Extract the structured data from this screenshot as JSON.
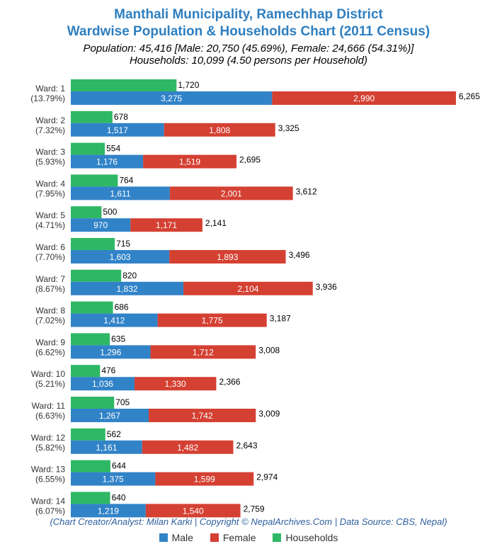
{
  "chart_data": {
    "type": "bar",
    "orientation": "horizontal",
    "stacked": true,
    "title": "Manthali Municipality, Ramechhap District",
    "subtitle": "Wardwise Population & Households Chart (2011 Census)",
    "summary_line1": "Population: 45,416 [Male: 20,750 (45.69%), Female: 24,666 (54.31%)]",
    "summary_line2": "Households: 10,099 (4.50 persons per Household)",
    "categories": [
      "Ward: 1",
      "Ward: 2",
      "Ward: 3",
      "Ward: 4",
      "Ward: 5",
      "Ward: 6",
      "Ward: 7",
      "Ward: 8",
      "Ward: 9",
      "Ward: 10",
      "Ward: 11",
      "Ward: 12",
      "Ward: 13",
      "Ward: 14"
    ],
    "category_shares": [
      "(13.79%)",
      "(7.32%)",
      "(5.93%)",
      "(7.95%)",
      "(4.71%)",
      "(7.70%)",
      "(8.67%)",
      "(7.02%)",
      "(6.62%)",
      "(5.21%)",
      "(6.63%)",
      "(5.82%)",
      "(6.55%)",
      "(6.07%)"
    ],
    "households": [
      1720,
      678,
      554,
      764,
      500,
      715,
      820,
      686,
      635,
      476,
      705,
      562,
      644,
      640
    ],
    "male": [
      3275,
      1517,
      1176,
      1611,
      970,
      1603,
      1832,
      1412,
      1296,
      1036,
      1267,
      1161,
      1375,
      1219
    ],
    "female": [
      2990,
      1808,
      1519,
      2001,
      1171,
      1893,
      2104,
      1775,
      1712,
      1330,
      1742,
      1482,
      1599,
      1540
    ],
    "totals": [
      6265,
      3325,
      2695,
      3612,
      2141,
      3496,
      3936,
      3187,
      3008,
      2366,
      3009,
      2643,
      2974,
      2759
    ],
    "series": [
      {
        "name": "Male",
        "color": "#3183c8"
      },
      {
        "name": "Female",
        "color": "#d44032"
      },
      {
        "name": "Households",
        "color": "#2eb865"
      }
    ],
    "xlim": [
      0,
      6265
    ],
    "grid": false,
    "legend_position": "bottom"
  },
  "footer": {
    "credit": "(Chart Creator/Analyst: Milan Karki | Copyright © NepalArchives.Com | Data Source: CBS, Nepal)"
  },
  "legend": {
    "male": "Male",
    "female": "Female",
    "households": "Households"
  }
}
